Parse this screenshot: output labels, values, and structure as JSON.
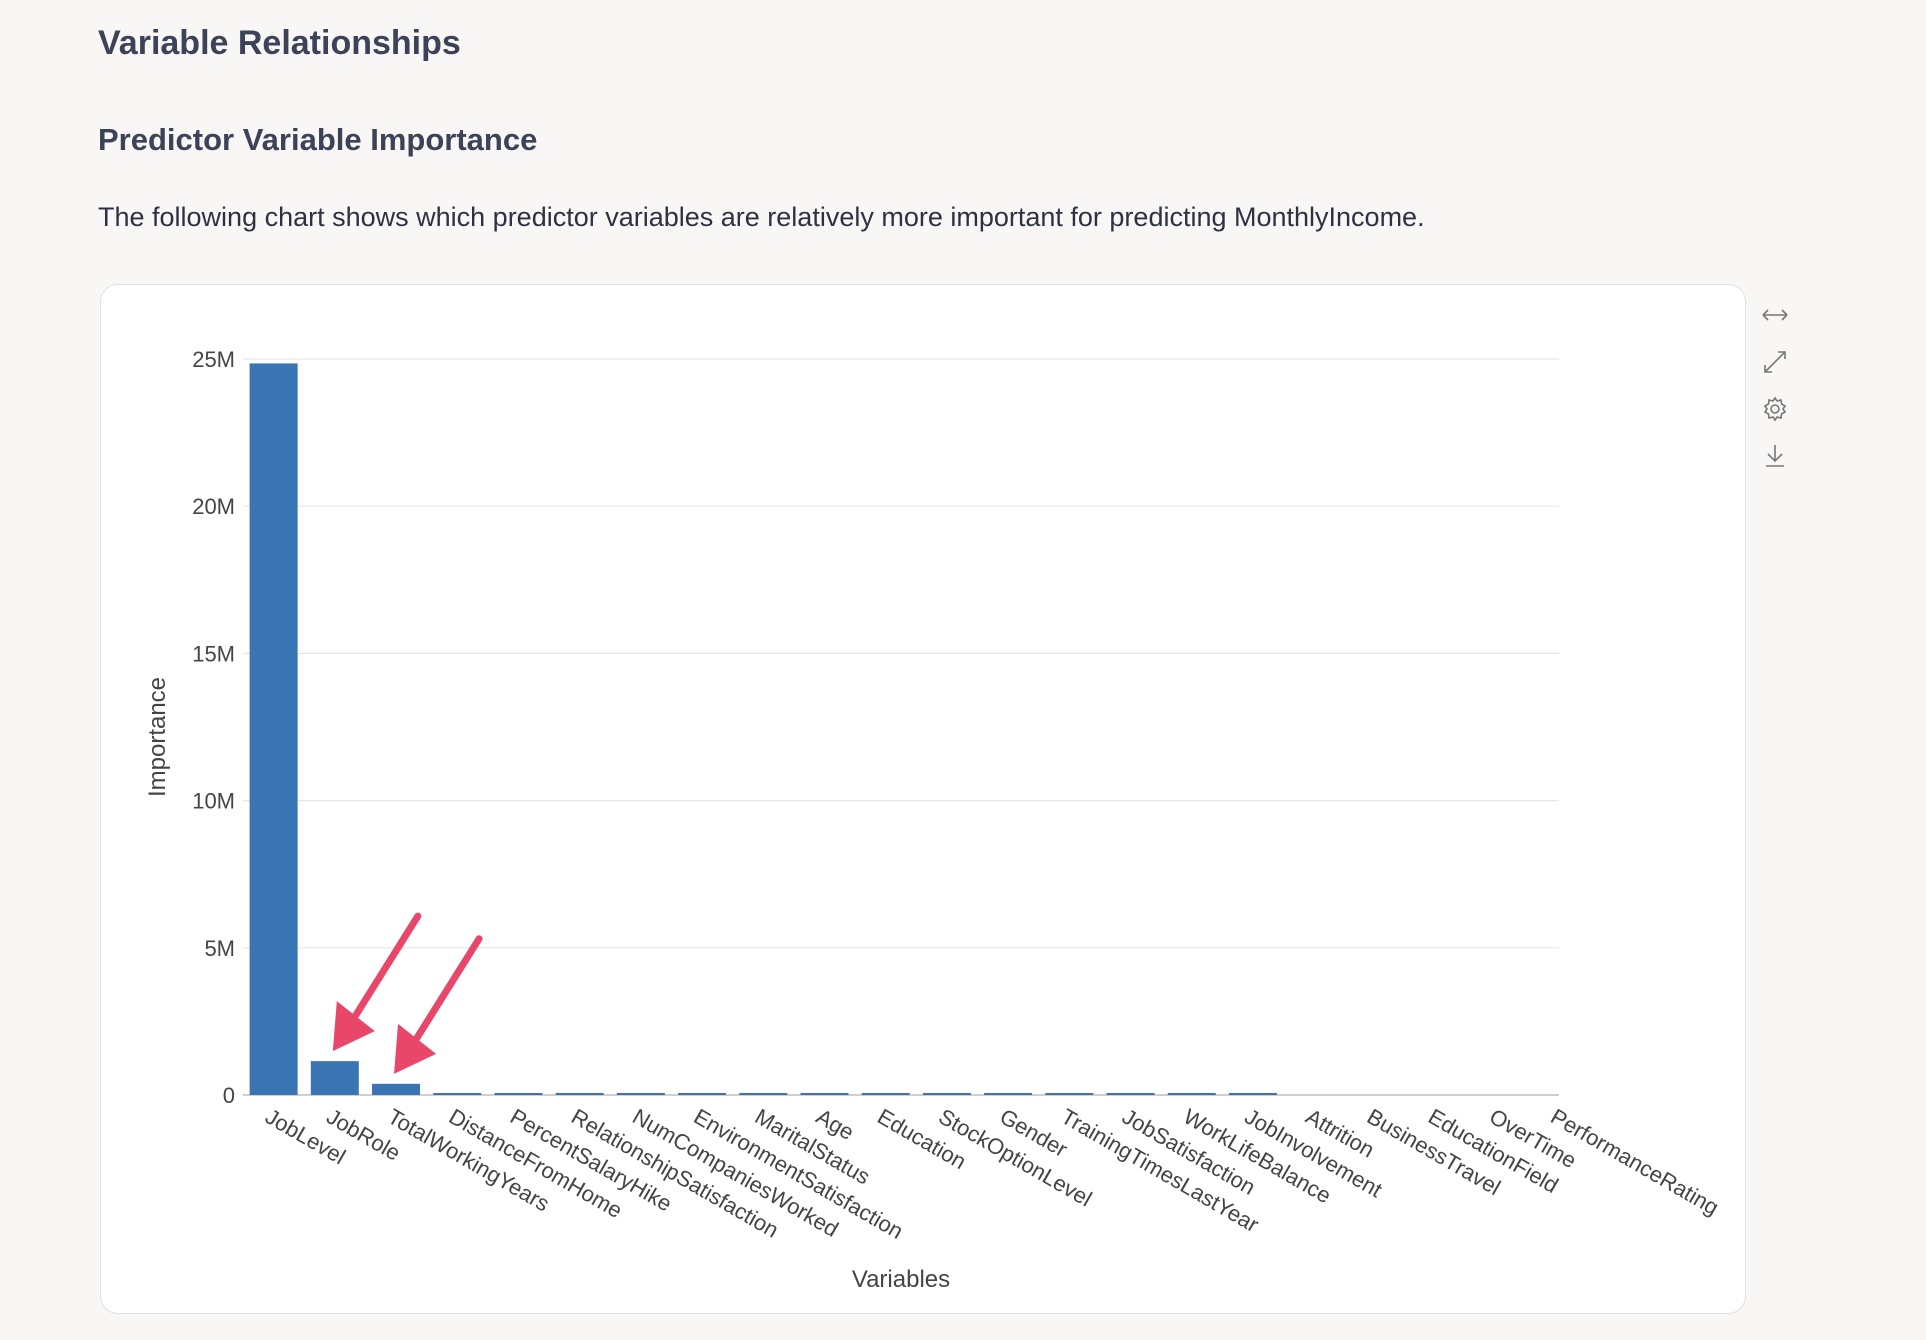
{
  "section": {
    "title": "Variable Relationships"
  },
  "importance": {
    "title": "Predictor Variable Importance",
    "description": "The following chart shows which predictor variables are relatively more important for predicting MonthlyIncome."
  },
  "toolbar": {
    "icons": [
      "expand-horizontal-icon",
      "maximize-icon",
      "settings-gear-icon",
      "download-icon"
    ]
  },
  "colors": {
    "bar": "#3b74b2",
    "arrow": "#e8476a",
    "grid": "#e6e6e6"
  },
  "chart_data": {
    "type": "bar",
    "title": "",
    "xlabel": "Variables",
    "ylabel": "Importance",
    "ylim": [
      0,
      25000000
    ],
    "yticks": [
      0,
      5000000,
      10000000,
      15000000,
      20000000,
      25000000
    ],
    "ytick_labels": [
      "0",
      "5M",
      "10M",
      "15M",
      "20M",
      "25M"
    ],
    "grid": true,
    "categories": [
      "JobLevel",
      "JobRole",
      "TotalWorkingYears",
      "DistanceFromHome",
      "PercentSalaryHike",
      "RelationshipSatisfaction",
      "NumCompaniesWorked",
      "EnvironmentSatisfaction",
      "MaritalStatus",
      "Age",
      "Education",
      "StockOptionLevel",
      "Gender",
      "TrainingTimesLastYear",
      "JobSatisfaction",
      "WorkLifeBalance",
      "JobInvolvement",
      "Attrition",
      "BusinessTravel",
      "EducationField",
      "OverTime",
      "PerformanceRating"
    ],
    "values": [
      24850000,
      1150000,
      380000,
      40000,
      38000,
      36000,
      34000,
      32000,
      30000,
      28000,
      26000,
      24000,
      22000,
      20000,
      18000,
      16000,
      14000,
      0,
      0,
      0,
      0,
      0
    ],
    "annotations": [
      {
        "type": "arrow",
        "target_category": "JobRole"
      },
      {
        "type": "arrow",
        "target_category": "TotalWorkingYears"
      }
    ]
  }
}
